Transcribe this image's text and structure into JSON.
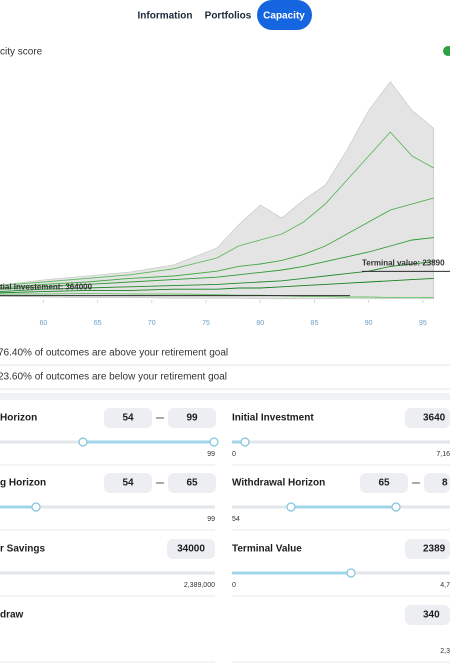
{
  "tabs": [
    "Information",
    "Portfolios",
    "Capacity"
  ],
  "chart_data": {
    "type": "line",
    "title": "city score",
    "x": [
      56,
      60,
      64,
      68,
      72,
      76,
      78,
      80,
      82,
      84,
      86,
      88,
      90,
      92,
      94,
      96
    ],
    "xlim": [
      56,
      97.5
    ],
    "xticks": [
      60,
      65,
      70,
      75,
      80,
      85,
      90,
      95
    ],
    "ylim": [
      0,
      20000000
    ],
    "band": {
      "color": "#e4e4e4",
      "upper": [
        1250000,
        1670000,
        2000000,
        2330000,
        2920000,
        4330000,
        6250000,
        7920000,
        6830000,
        8330000,
        9580000,
        12500000,
        15800000,
        18200000,
        15800000,
        14300000
      ],
      "lower": [
        300000,
        250000,
        200000,
        200000,
        150000,
        150000,
        150000,
        100000,
        100000,
        100000,
        100000,
        150000,
        100000,
        100000,
        150000,
        100000
      ]
    },
    "series": [
      {
        "color": "#5cb85c",
        "values": [
          1200000,
          1500000,
          1800000,
          2100000,
          2600000,
          3500000,
          4500000,
          5000000,
          5500000,
          6500000,
          8000000,
          10000000,
          12000000,
          14000000,
          12000000,
          11000000
        ]
      },
      {
        "color": "#43a843",
        "values": [
          1000000,
          1300000,
          1500000,
          1800000,
          2000000,
          2400000,
          2800000,
          3000000,
          3300000,
          3800000,
          4500000,
          5500000,
          6500000,
          7500000,
          8000000,
          8500000
        ]
      },
      {
        "color": "#2e9a34",
        "values": [
          900000,
          1100000,
          1300000,
          1500000,
          1700000,
          1900000,
          2100000,
          2300000,
          2500000,
          2800000,
          3200000,
          3600000,
          4000000,
          4500000,
          5000000,
          5200000
        ]
      },
      {
        "color": "#1f8a2a",
        "values": [
          700000,
          900000,
          1000000,
          1100000,
          1200000,
          1300000,
          1400000,
          1500000,
          1600000,
          1800000,
          2000000,
          2200000,
          2400000,
          2800000,
          3000000,
          3200000
        ]
      },
      {
        "color": "#17801f",
        "values": [
          600000,
          700000,
          800000,
          800000,
          900000,
          900000,
          1000000,
          1000000,
          1100000,
          1200000,
          1300000,
          1400000,
          1500000,
          1600000,
          1700000,
          1800000
        ]
      },
      {
        "color": "#6cc36c",
        "values": [
          500000,
          500000,
          550000,
          500000,
          500000,
          450000,
          400000,
          400000,
          350000,
          300000,
          300000,
          250000,
          250000,
          200000,
          200000,
          200000
        ]
      }
    ],
    "reference_lines": [
      {
        "label": "tial Investement: 364000",
        "value": 364000,
        "color": "#2b2b2b"
      },
      {
        "label": "Terminal value: 23890",
        "value": 2389000,
        "color": "#2b2b2b"
      }
    ]
  },
  "outcomes": [
    "76.40% of outcomes are above your retirement goal",
    "23.60% of outcomes are below your retirement goal"
  ],
  "controls": [
    {
      "label": "Horizon",
      "inputs": [
        54,
        99
      ],
      "max_label": 99
    },
    {
      "label": "Initial Investment",
      "inputs": [
        "3640"
      ],
      "min_label": 0,
      "max_label": "7,16"
    },
    {
      "label": "g Horizon",
      "inputs": [
        54,
        65
      ],
      "max_label": 99
    },
    {
      "label": "Withdrawal Horizon",
      "inputs": [
        65,
        "8"
      ],
      "min_label": 54
    },
    {
      "label": "r Savings",
      "inputs": [
        34000
      ],
      "max_label": "2,389,000"
    },
    {
      "label": "Terminal Value",
      "inputs": [
        "2389"
      ],
      "min_label": 0,
      "max_label": "4,7"
    },
    {
      "label": "draw"
    },
    {
      "inputs": [
        "340"
      ],
      "max_label": "2,3"
    }
  ]
}
